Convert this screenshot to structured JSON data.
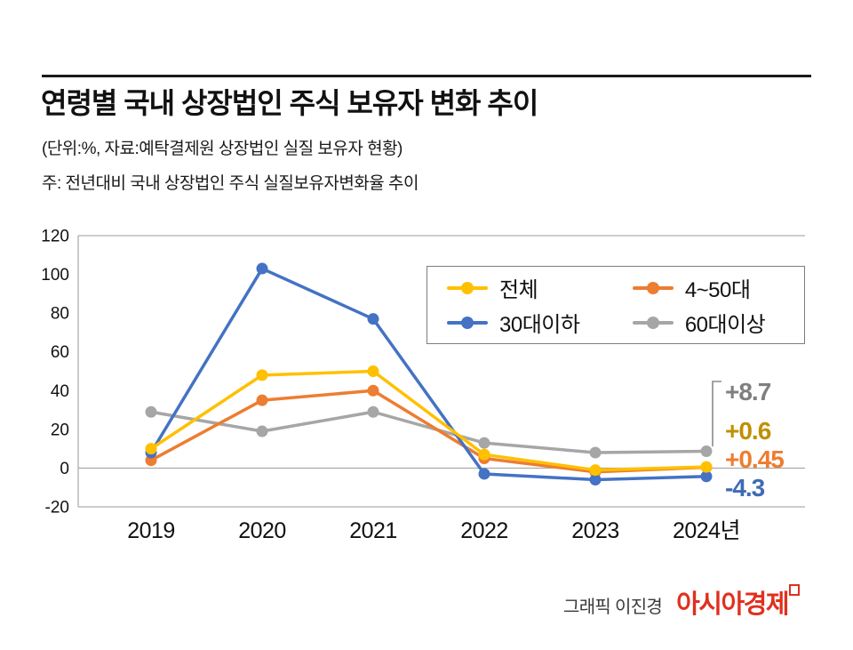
{
  "header": {
    "title": "연령별 국내 상장법인 주식 보유자 변화 추이",
    "unit_note": "(단위:%, 자료:예탁결제원 상장법인 실질 보유자 현황)",
    "note": "주: 전년대비 국내 상장법인 주식 실질보유자변화율 추이"
  },
  "chart_data": {
    "type": "line",
    "title": "연령별 국내 상장법인 주식 보유자 변화 추이",
    "xlabel": "",
    "ylabel": "%",
    "ylim": [
      -20,
      120
    ],
    "yticks": [
      120,
      100,
      80,
      60,
      40,
      20,
      0,
      -20
    ],
    "gridlines": [
      120,
      0,
      -20
    ],
    "legend_position": "top-right",
    "categories": [
      "2019",
      "2020",
      "2021",
      "2022",
      "2023",
      "2024년"
    ],
    "series": [
      {
        "name": "전체",
        "color": "#FFC000",
        "values": [
          10,
          48,
          50,
          7,
          -1,
          0.6
        ]
      },
      {
        "name": "4~50대",
        "color": "#ED7D31",
        "values": [
          4,
          35,
          40,
          5,
          -2,
          0.45
        ]
      },
      {
        "name": "30대이하",
        "color": "#4472C4",
        "values": [
          8,
          103,
          77,
          -3,
          -6,
          -4.3
        ]
      },
      {
        "name": "60대이상",
        "color": "#A6A6A6",
        "values": [
          29,
          19,
          29,
          13,
          8,
          8.7
        ]
      }
    ],
    "draw_order": [
      3,
      1,
      2,
      0
    ],
    "end_labels": [
      {
        "text": "+8.7",
        "color": "#7F7F7F"
      },
      {
        "text": "+0.6",
        "color": "#BF9000"
      },
      {
        "text": "+0.45",
        "color": "#ED7D31"
      },
      {
        "text": "-4.3",
        "color": "#3F6AB5"
      }
    ]
  },
  "footer": {
    "credit": "그래픽 이진경",
    "brand": "아시아경제",
    "brand_color": "#E0301E"
  }
}
